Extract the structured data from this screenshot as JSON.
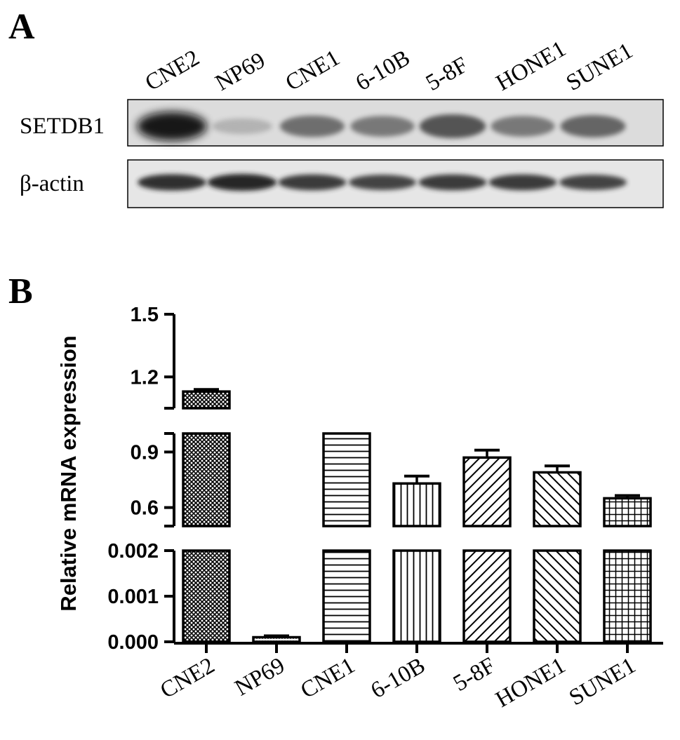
{
  "panels": {
    "a_letter": "A",
    "b_letter": "B"
  },
  "blot": {
    "lanes": [
      "CNE2",
      "NP69",
      "CNE1",
      "6-10B",
      "5-8F",
      "HONE1",
      "SUNE1"
    ],
    "rows": [
      {
        "label": "SETDB1",
        "intensity": [
          1.0,
          0.12,
          0.5,
          0.45,
          0.65,
          0.45,
          0.55
        ]
      },
      {
        "label": "β-actin",
        "intensity": [
          0.85,
          0.9,
          0.8,
          0.75,
          0.8,
          0.8,
          0.75
        ]
      }
    ]
  },
  "chart_data": {
    "type": "bar",
    "title": "",
    "xlabel": "",
    "ylabel": "Relative mRNA expression",
    "categories": [
      "CNE2",
      "NP69",
      "CNE1",
      "6-10B",
      "5-8F",
      "HONE1",
      "SUNE1"
    ],
    "values": [
      1.13,
      0.0001,
      1.0,
      0.73,
      0.87,
      0.79,
      0.65
    ],
    "errors": [
      0.01,
      3e-05,
      0.0,
      0.04,
      0.04,
      0.035,
      0.015
    ],
    "patterns": [
      "crosshatch",
      "dots",
      "horizontal",
      "vertical",
      "diagonal-right",
      "diagonal-left",
      "grid"
    ],
    "y_axis_breaks": true,
    "y_segments": [
      {
        "ylim": [
          0,
          0.002
        ],
        "ticks": [
          "0.000",
          "0.001",
          "0.002"
        ],
        "tick_values": [
          0,
          0.001,
          0.002
        ]
      },
      {
        "ylim": [
          0.5,
          1.0
        ],
        "ticks": [
          "0.6",
          "0.9"
        ],
        "tick_values": [
          0.6,
          0.9
        ]
      },
      {
        "ylim": [
          1.05,
          1.5
        ],
        "ticks": [
          "1.2",
          "1.5"
        ],
        "tick_values": [
          1.2,
          1.5
        ]
      }
    ],
    "grid": false,
    "legend": "none"
  }
}
